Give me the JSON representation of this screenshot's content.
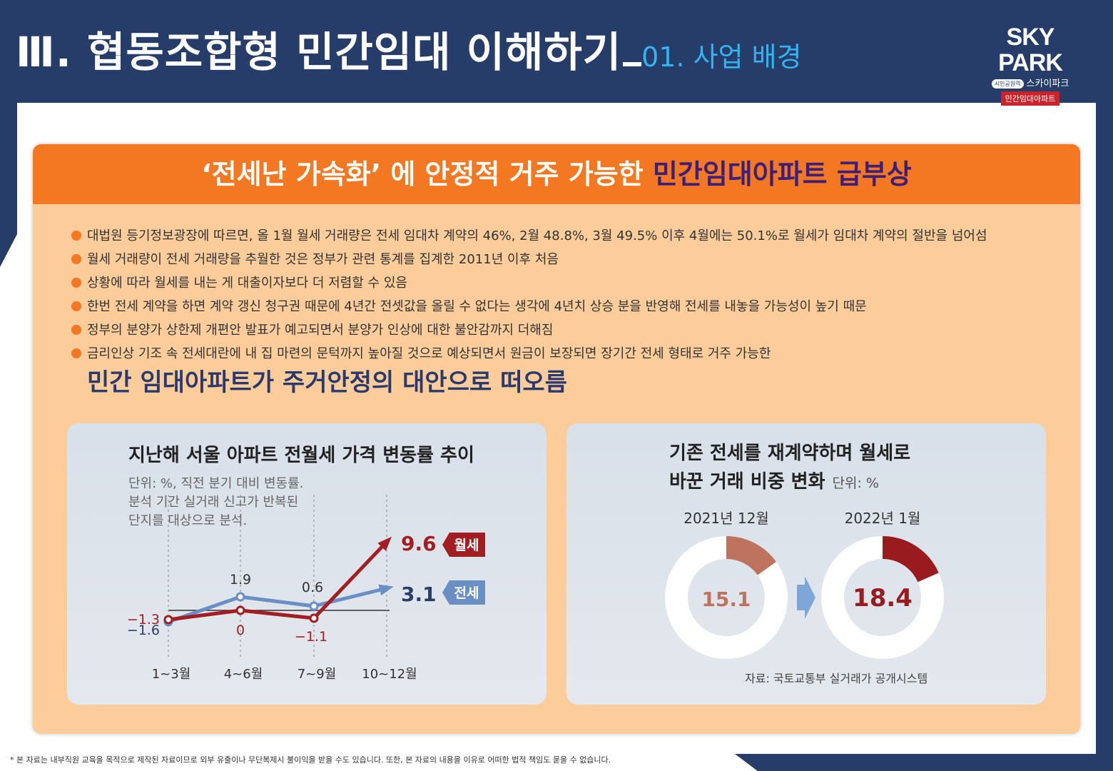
{
  "header": {
    "title": "Ⅲ. 협동조합형 민간임대 이해하기",
    "subtitle": "01. 사업 배경",
    "logo": {
      "main": "SKY PARK",
      "sub_pill": "시민공원역",
      "sub": "스카이파크",
      "badge": "민간임대아파트"
    }
  },
  "banner": {
    "text": "‘전세난 가속화’ 에 안정적 거주 가능한 ",
    "highlight": "민간임대아파트 급부상"
  },
  "bullets": [
    "대법원 등기정보광장에 따르면, 올 1월 월세 거래량은 전세 임대차 계약의 46%, 2월 48.8%, 3월 49.5% 이후 4월에는 50.1%로 월세가 임대차 계약의 절반을 넘어섬",
    "월세 거래량이 전세 거래량을 추월한 것은 정부가 관련 통계를 집계한 2011년 이후 처음",
    "상황에 따라 월세를 내는 게 대출이자보다 더 저렴할 수 있음",
    "한번 전세 계약을 하면 계약 갱신 청구권 때문에 4년간 전셋값을 올릴 수 없다는 생각에 4년치 상승 분을 반영해 전세를 내놓을 가능성이 높기 때문",
    "정부의 분양가 상한제 개편안 발표가 예고되면서 분양가 인상에 대한 불안감까지 더해짐",
    "금리인상 기조 속 전세대란에 내 집 마련의 문턱까지 높아질 것으로 예상되면서 원금이 보장되면 장기간 전세 형태로 거주 가능한"
  ],
  "conclusion": "민간 임대아파트가 주거안정의 대안으로 떠오름",
  "chart1": {
    "title": "지난해 서울 아파트 전월세 가격 변동률 추이",
    "note": [
      "단위: %, 직전 분기 대비 변동률.",
      "분석 기간 실거래 신고가 반복된",
      "단지를 대상으로 분석."
    ]
  },
  "chart2": {
    "title_line1": "기존 전세를 재계약하며 월세로",
    "title_line2": "바꾼 거래 비중 변화",
    "unit": "단위: %",
    "source": "자료: 국토교통부 실거래가 공개시스템"
  },
  "chart_data": [
    {
      "type": "line",
      "categories": [
        "1~3월",
        "4~6월",
        "7~9월",
        "10~12월"
      ],
      "series": [
        {
          "name": "월세",
          "values": [
            -1.3,
            0,
            -1.1,
            9.6
          ],
          "labels": [
            "−1.3",
            "0",
            "−1.1",
            "9.6"
          ],
          "color": "#a31e22"
        },
        {
          "name": "전세",
          "values": [
            -1.6,
            1.9,
            0.6,
            3.1
          ],
          "labels": [
            "−1.6",
            "1.9",
            "0.6",
            "3.1"
          ],
          "color": "#6a8fc4"
        }
      ]
    },
    {
      "type": "pie",
      "categories": [
        "2021년 12월",
        "2022년 1월"
      ],
      "values": [
        15.1,
        18.4
      ],
      "labels": [
        "15.1",
        "18.4"
      ],
      "colors": [
        "#bd735e",
        "#9a1b1f"
      ]
    }
  ],
  "footnote": "* 본 자료는 내부직원 교육을 목적으로 제작된 자료이므로 외부 유출이나 무단복제시 불이익을 받을 수도 있습니다. 또한, 본 자료의 내용을 이유로 어떠한 법적 책임도 묻을 수 없습니다."
}
